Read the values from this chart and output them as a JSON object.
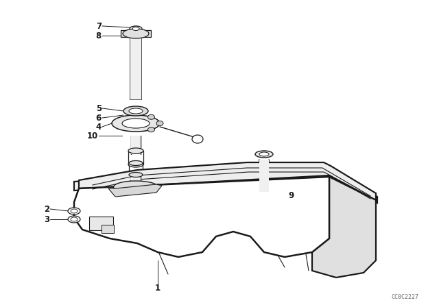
{
  "bg_color": "#ffffff",
  "line_color": "#1a1a1a",
  "watermark": "CC0C2227",
  "lw_main": 1.6,
  "lw_thin": 0.8,
  "lw_hair": 0.5
}
